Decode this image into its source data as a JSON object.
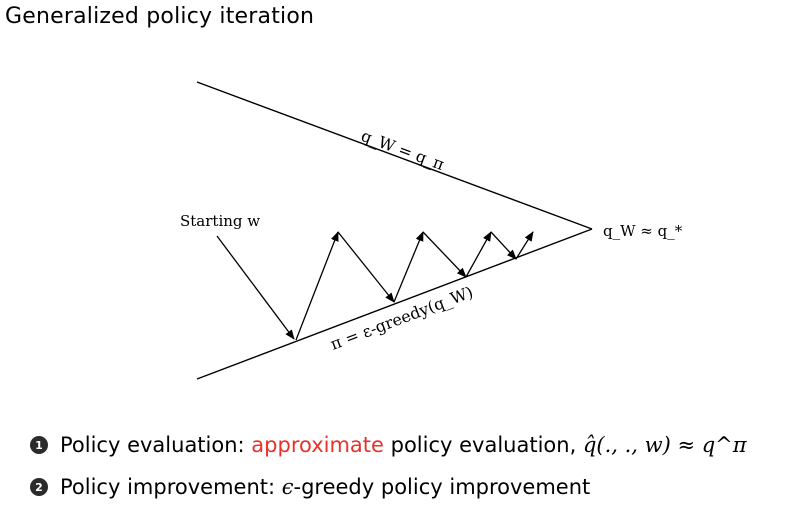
{
  "title": "Generalized policy iteration",
  "diagram": {
    "upper_line_label": "q_W = q_π",
    "lower_line_label": "π = ε-greedy(q_W)",
    "start_label": "Starting w",
    "end_label": "q_W ≈ q_*"
  },
  "bullets": [
    {
      "num": "1",
      "lead": "Policy evaluation: ",
      "highlight": "approximate",
      "rest": " policy evaluation, ",
      "formula": "q̂(., ., w) ≈ q^π"
    },
    {
      "num": "2",
      "lead": "Policy improvement: ",
      "epsilon": "ϵ",
      "rest": "-greedy policy improvement"
    }
  ],
  "colors": {
    "highlight": "#e8312a",
    "ink": "#000000"
  }
}
